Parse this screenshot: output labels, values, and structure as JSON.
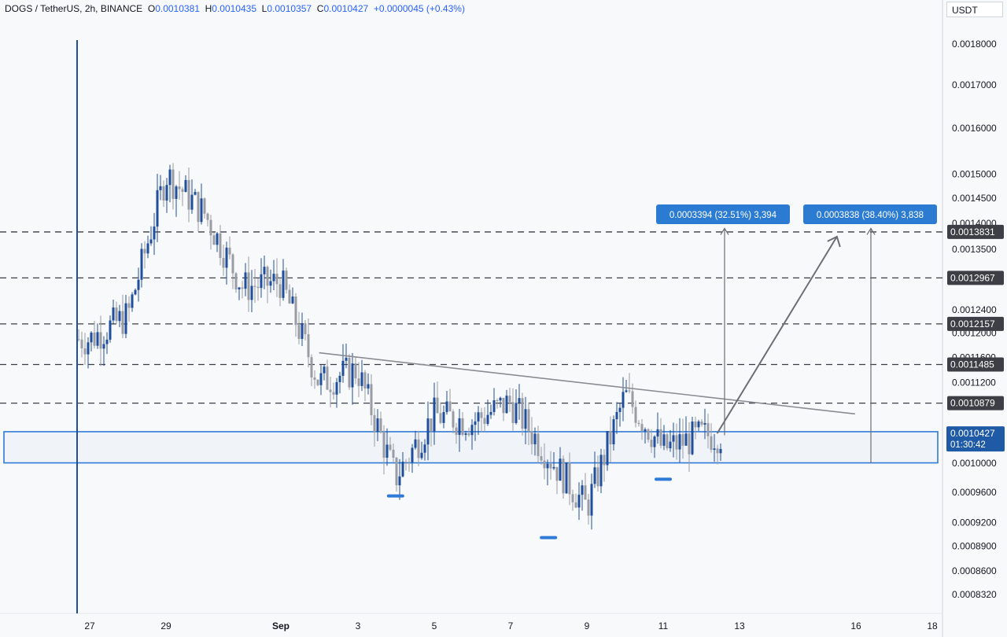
{
  "header": {
    "symbol": "DOGS / TetherUS, 2h, BINANCE",
    "open_label": "O",
    "open": "0.0010381",
    "high_label": "H",
    "high": "0.0010435",
    "low_label": "L",
    "low": "0.0010357",
    "close_label": "C",
    "close": "0.0010427",
    "change": "+0.0000045 (+0.43%)"
  },
  "currency_button": "USDT",
  "colors": {
    "background": "#f8f9fb",
    "candle_up": "#1f4e9c",
    "candle_down": "#9a9ca3",
    "zone": "#2f7ad6",
    "level_label_bg": "#3c3f45",
    "price_tag_bg": "#1f5aa6",
    "callout_bg": "#2b7bd3",
    "trendline": "#8a8c92"
  },
  "chart_data": {
    "type": "candlestick",
    "axis": {
      "y_scale": "log",
      "y_ticks": [
        "0.0018000",
        "0.0017000",
        "0.0016000",
        "0.0015000",
        "0.0014500",
        "0.0014000",
        "0.0013500",
        "0.0012400",
        "0.0012000",
        "0.0011600",
        "0.0011200",
        "0.0010000",
        "0.0009600",
        "0.0009200",
        "0.0008900",
        "0.0008600",
        "0.0008320"
      ],
      "x_ticks": [
        "27",
        "29",
        "Sep",
        "3",
        "5",
        "7",
        "9",
        "11",
        "13",
        "16",
        "18"
      ]
    },
    "levels": [
      {
        "price": 0.0013831,
        "label": "0.0013831"
      },
      {
        "price": 0.0012967,
        "label": "0.0012967"
      },
      {
        "price": 0.0012157,
        "label": "0.0012157"
      },
      {
        "price": 0.0011485,
        "label": "0.0011485"
      },
      {
        "price": 0.0010879,
        "label": "0.0010879"
      }
    ],
    "last_price": {
      "price": 0.0010427,
      "label": "0.0010427",
      "countdown": "01:30:42"
    },
    "support_zone": {
      "top": 0.0010452,
      "bottom": 0.0010005
    },
    "callouts": [
      {
        "text": "0.0003394 (32.51%) 3,394"
      },
      {
        "text": "0.0003838 (38.40%) 3,838"
      }
    ],
    "trendline": {
      "from": {
        "date": "Sep 2",
        "price": 0.0011675
      },
      "to": {
        "date": "Sep 14",
        "price": 0.0010775
      }
    },
    "projection": {
      "from": {
        "date": "Sep 12",
        "price": 0.0010427
      },
      "to": {
        "date": "Sep 14",
        "price": 0.0013831
      }
    },
    "lows_marked": [
      {
        "date": "Sep 4",
        "price": 0.00097
      },
      {
        "date": "Sep 8",
        "price": 0.000915
      },
      {
        "date": "Sep 11",
        "price": 0.000993
      }
    ],
    "anchors": [
      {
        "date": "Aug 27",
        "price": 0.00119
      },
      {
        "date": "Aug 28",
        "price": 0.00123
      },
      {
        "date": "Aug 29",
        "price": 0.0015
      },
      {
        "date": "Aug 30",
        "price": 0.00142
      },
      {
        "date": "Aug 31",
        "price": 0.00128
      },
      {
        "date": "Sep 1",
        "price": 0.00129
      },
      {
        "date": "Sep 2",
        "price": 0.00112
      },
      {
        "date": "Sep 3",
        "price": 0.00114
      },
      {
        "date": "Sep 4",
        "price": 0.00098
      },
      {
        "date": "Sep 5",
        "price": 0.00107
      },
      {
        "date": "Sep 6",
        "price": 0.00106
      },
      {
        "date": "Sep 7",
        "price": 0.00109
      },
      {
        "date": "Sep 8",
        "price": 0.00101
      },
      {
        "date": "Sep 9",
        "price": 0.00094
      },
      {
        "date": "Sep 10",
        "price": 0.0011
      },
      {
        "date": "Sep 11",
        "price": 0.00102
      },
      {
        "date": "Sep 12",
        "price": 0.00104
      }
    ]
  }
}
